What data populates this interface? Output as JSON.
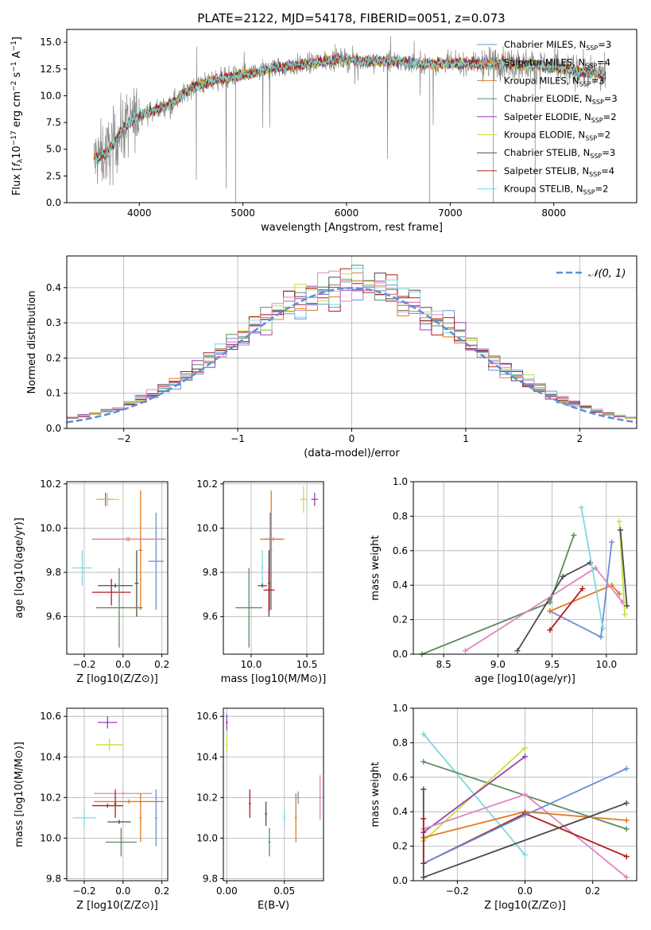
{
  "figure": {
    "title": "PLATE=2122, MJD=54178, FIBERID=0051, z=0.073"
  },
  "colors": {
    "c1": "#6b8fd6",
    "c2": "#e07b22",
    "c3": "#5d8c5d",
    "c4": "#9b3fb5",
    "c5": "#c8df3a",
    "c6": "#4d4d4d",
    "c7": "#b21e1e",
    "c8": "#7dd8e0",
    "c9": "#e085c0",
    "data": "#888888",
    "grid": "#b0b0b0"
  },
  "chart_data": [
    {
      "id": "spectrum",
      "type": "line",
      "title": "PLATE=2122, MJD=54178, FIBERID=0051, z=0.073",
      "xlabel": "wavelength [Angstrom, rest frame]",
      "ylabel": "Flux [f_λ10^-17 erg cm^-2 s^-1 A^-1]",
      "ylabel_parts": [
        "Flux [",
        "f",
        "λ",
        "10",
        "−17",
        " erg cm",
        "−2",
        " s",
        "−1",
        " A",
        "−1",
        "]"
      ],
      "xlim": [
        3300,
        8800
      ],
      "ylim": [
        0,
        16.2
      ],
      "xticks": [
        4000,
        5000,
        6000,
        7000,
        8000
      ],
      "xtick_labels": [
        "4000",
        "5000",
        "6000",
        "7000",
        "8000"
      ],
      "yticks": [
        0,
        2.5,
        5,
        7.5,
        10,
        12.5,
        15
      ],
      "ytick_labels": [
        "0.0",
        "2.5",
        "5.0",
        "7.5",
        "10.0",
        "12.5",
        "15.0"
      ],
      "grid": false,
      "legend_placement": "right",
      "legend": [
        {
          "label": "Chabrier MILES, N",
          "sub": "SSP",
          "suffix": "=3",
          "color": "#6b8fd6"
        },
        {
          "label": "Salpeter MILES, N",
          "sub": "SSP",
          "suffix": "=4",
          "color": "#e07b22"
        },
        {
          "label": "Kroupa MILES, N",
          "sub": "SSP",
          "suffix": "=3",
          "color": "#e07b22"
        },
        {
          "label": "Chabrier ELODIE, N",
          "sub": "SSP",
          "suffix": "=3",
          "color": "#5d8c5d"
        },
        {
          "label": "Salpeter ELODIE, N",
          "sub": "SSP",
          "suffix": "=2",
          "color": "#9b3fb5"
        },
        {
          "label": "Kroupa ELODIE, N",
          "sub": "SSP",
          "suffix": "=2",
          "color": "#c8df3a"
        },
        {
          "label": "Chabrier STELIB, N",
          "sub": "SSP",
          "suffix": "=3",
          "color": "#4d4d4d"
        },
        {
          "label": "Salpeter STELIB, N",
          "sub": "SSP",
          "suffix": "=4",
          "color": "#b21e1e"
        },
        {
          "label": "Kroupa STELIB, N",
          "sub": "SSP",
          "suffix": "=2",
          "color": "#7dd8e0"
        }
      ],
      "continuum_x": [
        3560,
        3700,
        3850,
        4000,
        4150,
        4300,
        4500,
        4700,
        4900,
        5100,
        5300,
        5500,
        5700,
        5900,
        6100,
        6300,
        6500,
        6700,
        6900,
        7100,
        7300,
        7500,
        7700,
        7900,
        8100,
        8300,
        8500
      ],
      "continuum_y": [
        4.0,
        4.8,
        7.0,
        8.2,
        8.6,
        9.2,
        10.7,
        11.4,
        11.8,
        12.1,
        12.6,
        12.8,
        13.1,
        13.4,
        13.3,
        13.2,
        13.2,
        13.0,
        13.0,
        13.0,
        13.0,
        13.1,
        12.9,
        12.8,
        12.5,
        12.2,
        11.9
      ]
    },
    {
      "id": "residuals",
      "type": "histogram",
      "xlabel": "(data-model)/error",
      "ylabel": "Normed distribution",
      "xlim": [
        -2.5,
        2.5
      ],
      "ylim": [
        0,
        0.49
      ],
      "xticks": [
        -2,
        -1,
        0,
        1,
        2
      ],
      "xtick_labels": [
        "−2",
        "−1",
        "0",
        "1",
        "2"
      ],
      "yticks": [
        0,
        0.1,
        0.2,
        0.3,
        0.4
      ],
      "ytick_labels": [
        "0.0",
        "0.1",
        "0.2",
        "0.3",
        "0.4"
      ],
      "grid": true,
      "bin_width": 0.1,
      "legend": "𝒩(0, 1)",
      "legend_placement": "top-right",
      "normal_color": "#5b8fd4"
    },
    {
      "id": "age-vs-Z",
      "type": "errorbar",
      "xlabel": "Z [log10(Z/Z⊙)]",
      "ylabel": "age  [log10(age/yr)]",
      "xlim": [
        -0.29,
        0.23
      ],
      "ylim": [
        9.43,
        10.21
      ],
      "xticks": [
        -0.2,
        0,
        0.2
      ],
      "xtick_labels": [
        "−0.2",
        "0.0",
        "0.2"
      ],
      "yticks": [
        9.6,
        9.8,
        10.0,
        10.2
      ],
      "ytick_labels": [
        "9.6",
        "9.8",
        "10.0",
        "10.2"
      ],
      "grid": true,
      "points": [
        {
          "x": -0.09,
          "y": 10.13,
          "xerr": 0.04,
          "yerr": 0.03,
          "color": "#9b3fb5"
        },
        {
          "x": -0.08,
          "y": 10.13,
          "xerr": 0.06,
          "yerr": 0.03,
          "color": "#c8df3a"
        },
        {
          "x": 0.17,
          "y": 9.85,
          "xerr": 0.04,
          "yerr": 0.22,
          "color": "#6b8fd6"
        },
        {
          "x": 0.09,
          "y": 9.9,
          "xerr": 0.01,
          "yerr": 0.27,
          "color": "#e07b22"
        },
        {
          "x": 0.03,
          "y": 9.95,
          "xerr": 0.19,
          "yerr": 0.0,
          "color": "#e07b22"
        },
        {
          "x": 0.02,
          "y": 9.95,
          "xerr": 0.18,
          "yerr": 0.0,
          "color": "#e085c0"
        },
        {
          "x": -0.21,
          "y": 9.82,
          "xerr": 0.05,
          "yerr": 0.08,
          "color": "#7dd8e0"
        },
        {
          "x": 0.07,
          "y": 9.75,
          "xerr": 0.01,
          "yerr": 0.15,
          "color": "#4d4d4d"
        },
        {
          "x": -0.04,
          "y": 9.74,
          "xerr": 0.09,
          "yerr": 0.0,
          "color": "#4d4d4d"
        },
        {
          "x": -0.06,
          "y": 9.71,
          "xerr": 0.1,
          "yerr": 0.06,
          "color": "#b21e1e"
        },
        {
          "x": -0.02,
          "y": 9.64,
          "xerr": 0.12,
          "yerr": 0.18,
          "color": "#5d8c5d"
        }
      ]
    },
    {
      "id": "age-vs-mass",
      "type": "errorbar",
      "xlabel": "mass [log10(M/M⊙)]",
      "ylabel": "",
      "xlim": [
        9.75,
        10.65
      ],
      "ylim": [
        9.43,
        10.21
      ],
      "xticks": [
        10.0,
        10.5
      ],
      "xtick_labels": [
        "10.0",
        "10.5"
      ],
      "yticks": [
        9.6,
        9.8,
        10.0,
        10.2
      ],
      "ytick_labels": [
        "9.6",
        "9.8",
        "10.0",
        "10.2"
      ],
      "grid": true,
      "points": [
        {
          "x": 10.47,
          "y": 10.13,
          "xerr": 0.03,
          "yerr": 0.06,
          "color": "#c8df3a"
        },
        {
          "x": 10.57,
          "y": 10.13,
          "xerr": 0.03,
          "yerr": 0.03,
          "color": "#9b3fb5"
        },
        {
          "x": 10.2,
          "y": 9.95,
          "xerr": 0.1,
          "yerr": 0.0,
          "color": "#e085c0"
        },
        {
          "x": 10.18,
          "y": 9.95,
          "xerr": 0.1,
          "yerr": 0.0,
          "color": "#e07b22"
        },
        {
          "x": 10.18,
          "y": 9.9,
          "xerr": 0.0,
          "yerr": 0.27,
          "color": "#e07b22"
        },
        {
          "x": 10.17,
          "y": 9.85,
          "xerr": 0.0,
          "yerr": 0.22,
          "color": "#6b8fd6"
        },
        {
          "x": 10.1,
          "y": 9.82,
          "xerr": 0.0,
          "yerr": 0.08,
          "color": "#7dd8e0"
        },
        {
          "x": 10.1,
          "y": 9.74,
          "xerr": 0.04,
          "yerr": 0.0,
          "color": "#4d4d4d"
        },
        {
          "x": 10.16,
          "y": 9.75,
          "xerr": 0.0,
          "yerr": 0.15,
          "color": "#4d4d4d"
        },
        {
          "x": 10.16,
          "y": 9.72,
          "xerr": 0.05,
          "yerr": 0.1,
          "color": "#b21e1e"
        },
        {
          "x": 9.98,
          "y": 9.64,
          "xerr": 0.12,
          "yerr": 0.18,
          "color": "#5d8c5d"
        }
      ]
    },
    {
      "id": "mass-weight-vs-age",
      "type": "line",
      "xlabel": "age  [log10(age/yr)]",
      "ylabel": "mass weight",
      "xlim": [
        8.22,
        10.28
      ],
      "ylim": [
        0,
        1.0
      ],
      "xticks": [
        8.5,
        9.0,
        9.5,
        10.0
      ],
      "xtick_labels": [
        "8.5",
        "9.0",
        "9.5",
        "10.0"
      ],
      "yticks": [
        0,
        0.2,
        0.4,
        0.6,
        0.8,
        1.0
      ],
      "ytick_labels": [
        "0.0",
        "0.2",
        "0.4",
        "0.6",
        "0.8",
        "1.0"
      ],
      "grid": true,
      "series": [
        {
          "color": "#6b8fd6",
          "x": [
            9.48,
            9.95,
            10.05
          ],
          "y": [
            0.25,
            0.1,
            0.65
          ]
        },
        {
          "color": "#e07b22",
          "x": [
            9.48,
            10.05,
            10.12
          ],
          "y": [
            0.25,
            0.4,
            0.35
          ]
        },
        {
          "color": "#5d8c5d",
          "x": [
            8.3,
            9.48,
            9.7
          ],
          "y": [
            0.0,
            0.3,
            0.69
          ]
        },
        {
          "color": "#4d4d4d",
          "x": [
            9.18,
            9.6,
            9.85
          ],
          "y": [
            0.02,
            0.45,
            0.53
          ]
        },
        {
          "color": "#e085c0",
          "x": [
            8.7,
            9.9,
            10.15
          ],
          "y": [
            0.02,
            0.5,
            0.3
          ]
        },
        {
          "color": "#b21e1e",
          "x": [
            9.48,
            9.78
          ],
          "y": [
            0.14,
            0.38
          ]
        },
        {
          "color": "#7dd8e0",
          "x": [
            9.77,
            9.97
          ],
          "y": [
            0.85,
            0.15
          ]
        },
        {
          "color": "#c8df3a",
          "x": [
            10.12,
            10.17
          ],
          "y": [
            0.77,
            0.23
          ]
        },
        {
          "color": "#4d4d4d",
          "x": [
            10.13,
            10.19
          ],
          "y": [
            0.72,
            0.28
          ]
        }
      ]
    },
    {
      "id": "mass-vs-Z",
      "type": "errorbar",
      "xlabel": "Z [log10(Z/Z⊙)]",
      "ylabel": "mass [log10(M/M⊙)]",
      "xlim": [
        -0.29,
        0.23
      ],
      "ylim": [
        9.79,
        10.64
      ],
      "xticks": [
        -0.2,
        0,
        0.2
      ],
      "xtick_labels": [
        "−0.2",
        "0.0",
        "0.2"
      ],
      "yticks": [
        9.8,
        10.0,
        10.2,
        10.4,
        10.6
      ],
      "ytick_labels": [
        "9.8",
        "10.0",
        "10.2",
        "10.4",
        "10.6"
      ],
      "grid": true,
      "points": [
        {
          "x": -0.08,
          "y": 10.57,
          "xerr": 0.05,
          "yerr": 0.03,
          "color": "#9b3fb5"
        },
        {
          "x": -0.07,
          "y": 10.46,
          "xerr": 0.07,
          "yerr": 0.03,
          "color": "#c8df3a"
        },
        {
          "x": 0.0,
          "y": 10.22,
          "xerr": 0.15,
          "yerr": 0.0,
          "color": "#e085c0"
        },
        {
          "x": 0.03,
          "y": 10.18,
          "xerr": 0.18,
          "yerr": 0.0,
          "color": "#e07b22"
        },
        {
          "x": 0.09,
          "y": 10.1,
          "xerr": 0.0,
          "yerr": 0.12,
          "color": "#e07b22"
        },
        {
          "x": 0.17,
          "y": 10.1,
          "xerr": 0.0,
          "yerr": 0.14,
          "color": "#6b8fd6"
        },
        {
          "x": -0.04,
          "y": 10.17,
          "xerr": 0.0,
          "yerr": 0.07,
          "color": "#b21e1e"
        },
        {
          "x": -0.08,
          "y": 10.16,
          "xerr": 0.08,
          "yerr": 0.0,
          "color": "#b21e1e"
        },
        {
          "x": -0.2,
          "y": 10.1,
          "xerr": 0.06,
          "yerr": 0.04,
          "color": "#7dd8e0"
        },
        {
          "x": -0.02,
          "y": 10.08,
          "xerr": 0.06,
          "yerr": 0.0,
          "color": "#4d4d4d"
        },
        {
          "x": -0.01,
          "y": 9.98,
          "xerr": 0.08,
          "yerr": 0.07,
          "color": "#5d8c5d"
        }
      ]
    },
    {
      "id": "mass-vs-ebv",
      "type": "errorbar",
      "xlabel": "E(B-V)",
      "ylabel": "",
      "xlim": [
        -0.003,
        0.084
      ],
      "ylim": [
        9.79,
        10.64
      ],
      "xticks": [
        0.0,
        0.05
      ],
      "xtick_labels": [
        "0.00",
        "0.05"
      ],
      "yticks": [
        9.8,
        10.0,
        10.2,
        10.4,
        10.6
      ],
      "ytick_labels": [
        "9.8",
        "10.0",
        "10.2",
        "10.4",
        "10.6"
      ],
      "grid": true,
      "points": [
        {
          "x": 0.0,
          "y": 10.57,
          "xerr": 0.0,
          "yerr": 0.04,
          "color": "#9b3fb5"
        },
        {
          "x": 0.0,
          "y": 10.46,
          "xerr": 0.0,
          "yerr": 0.04,
          "color": "#c8df3a"
        },
        {
          "x": 0.02,
          "y": 10.17,
          "xerr": 0.0,
          "yerr": 0.07,
          "color": "#b21e1e"
        },
        {
          "x": 0.034,
          "y": 10.12,
          "xerr": 0.0,
          "yerr": 0.06,
          "color": "#4d4d4d"
        },
        {
          "x": 0.037,
          "y": 9.98,
          "xerr": 0.0,
          "yerr": 0.07,
          "color": "#5d8c5d"
        },
        {
          "x": 0.05,
          "y": 10.1,
          "xerr": 0.0,
          "yerr": 0.04,
          "color": "#7dd8e0"
        },
        {
          "x": 0.06,
          "y": 10.1,
          "xerr": 0.0,
          "yerr": 0.12,
          "color": "#e07b22"
        },
        {
          "x": 0.062,
          "y": 10.2,
          "xerr": 0.0,
          "yerr": 0.03,
          "color": "#6b8fd6"
        },
        {
          "x": 0.081,
          "y": 10.2,
          "xerr": 0.0,
          "yerr": 0.11,
          "color": "#e085c0"
        }
      ]
    },
    {
      "id": "mass-weight-vs-Z",
      "type": "line",
      "xlabel": "Z [log10(Z/Z⊙)]",
      "ylabel": "mass weight",
      "xlim": [
        -0.33,
        0.33
      ],
      "ylim": [
        0,
        1.0
      ],
      "xticks": [
        -0.2,
        0.0,
        0.2
      ],
      "xtick_labels": [
        "−0.2",
        "0.0",
        "0.2"
      ],
      "yticks": [
        0,
        0.2,
        0.4,
        0.6,
        0.8,
        1.0
      ],
      "ytick_labels": [
        "0.0",
        "0.2",
        "0.4",
        "0.6",
        "0.8",
        "1.0"
      ],
      "grid": true,
      "series": [
        {
          "color": "#7dd8e0",
          "x": [
            -0.3,
            0.0
          ],
          "y": [
            0.85,
            0.15
          ]
        },
        {
          "color": "#5d8c5d",
          "x": [
            -0.3,
            0.3
          ],
          "y": [
            0.69,
            0.3
          ]
        },
        {
          "color": "#c8df3a",
          "x": [
            -0.3,
            0.0
          ],
          "y": [
            0.23,
            0.77
          ]
        },
        {
          "color": "#9b3fb5",
          "x": [
            -0.3,
            0.0
          ],
          "y": [
            0.28,
            0.72
          ]
        },
        {
          "color": "#e085c0",
          "x": [
            -0.3,
            0.0,
            0.3
          ],
          "y": [
            0.3,
            0.5,
            0.02
          ]
        },
        {
          "color": "#e07b22",
          "x": [
            -0.3,
            0.0,
            0.3
          ],
          "y": [
            0.25,
            0.4,
            0.35
          ]
        },
        {
          "color": "#b21e1e",
          "x": [
            -0.3,
            0.0,
            0.3
          ],
          "y": [
            0.1,
            0.39,
            0.14
          ]
        },
        {
          "color": "#6b8fd6",
          "x": [
            -0.3,
            0.0,
            0.3
          ],
          "y": [
            0.1,
            0.38,
            0.65
          ]
        },
        {
          "color": "#4d4d4d",
          "x": [
            -0.3,
            0.3
          ],
          "y": [
            0.02,
            0.45
          ]
        },
        {
          "color": "#4d4d4d",
          "x": [
            -0.3,
            -0.3
          ],
          "y": [
            0.02,
            0.53
          ]
        },
        {
          "color": "#b21e1e",
          "x": [
            -0.3,
            -0.3
          ],
          "y": [
            0.1,
            0.36
          ]
        }
      ]
    }
  ]
}
